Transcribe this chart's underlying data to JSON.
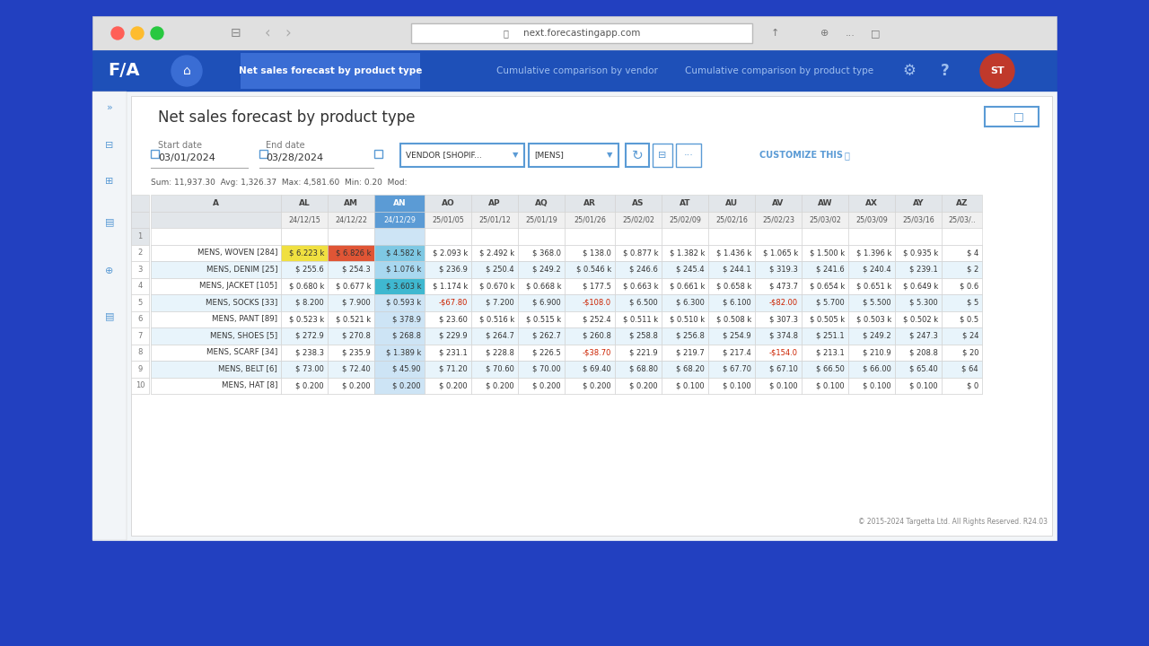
{
  "title": "Net sales forecast by product type",
  "start_date": "03/01/2024",
  "end_date": "03/28/2024",
  "vendor_filter": "VENDOR [SHOPIF...",
  "category_filter": "[MENS]",
  "sum_line": "Sum: 11,937.30  Avg: 1,326.37  Max: 4,581.60  Min: 0.20  Mod:",
  "bg_color": "#2240C0",
  "browser_chrome_bg": "#dedede",
  "content_bg": "#f2f5f8",
  "white_panel_bg": "#ffffff",
  "nav_bar_color": "#1e50b8",
  "nav_active_bg": "#3a6dd4",
  "header_row_bg": "#e2e6ea",
  "selected_col_bg": "#5b9bd5",
  "selected_col_light": "#cde4f5",
  "alt_row_bg": "#e8f4fb",
  "footer_text": "© 2015-2024 Targetta Ltd. All Rights Reserved. R24.03",
  "col_headers": [
    "A",
    "AL",
    "AM",
    "AN",
    "AO",
    "AP",
    "AQ",
    "AR",
    "AS",
    "AT",
    "AU",
    "AV",
    "AW",
    "AX",
    "AY",
    "AZ"
  ],
  "date_headers": [
    "",
    "24/12/15",
    "24/12/22",
    "24/12/29",
    "25/01/05",
    "25/01/12",
    "25/01/19",
    "25/01/26",
    "25/02/02",
    "25/02/09",
    "25/02/16",
    "25/02/23",
    "25/03/02",
    "25/03/09",
    "25/03/16",
    "25/03/.."
  ],
  "rows": [
    [
      "",
      "",
      "",
      "",
      "",
      "",
      "",
      "",
      "",
      "",
      "",
      "",
      "",
      "",
      "",
      ""
    ],
    [
      "MENS, WOVEN [284]",
      "$ 6.223 k",
      "$ 6.826 k",
      "$ 4.582 k",
      "$ 2.093 k",
      "$ 2.492 k",
      "$ 368.0",
      "$ 138.0",
      "$ 0.877 k",
      "$ 1.382 k",
      "$ 1.436 k",
      "$ 1.065 k",
      "$ 1.500 k",
      "$ 1.396 k",
      "$ 0.935 k",
      "$ 4"
    ],
    [
      "MENS, DENIM [25]",
      "$ 255.6",
      "$ 254.3",
      "$ 1.076 k",
      "$ 236.9",
      "$ 250.4",
      "$ 249.2",
      "$ 0.546 k",
      "$ 246.6",
      "$ 245.4",
      "$ 244.1",
      "$ 319.3",
      "$ 241.6",
      "$ 240.4",
      "$ 239.1",
      "$ 2"
    ],
    [
      "MENS, JACKET [105]",
      "$ 0.680 k",
      "$ 0.677 k",
      "$ 3.603 k",
      "$ 1.174 k",
      "$ 0.670 k",
      "$ 0.668 k",
      "$ 177.5",
      "$ 0.663 k",
      "$ 0.661 k",
      "$ 0.658 k",
      "$ 473.7",
      "$ 0.654 k",
      "$ 0.651 k",
      "$ 0.649 k",
      "$ 0.6"
    ],
    [
      "MENS, SOCKS [33]",
      "$ 8.200",
      "$ 7.900",
      "$ 0.593 k",
      "-$67.80",
      "$ 7.200",
      "$ 6.900",
      "-$108.0",
      "$ 6.500",
      "$ 6.300",
      "$ 6.100",
      "-$82.00",
      "$ 5.700",
      "$ 5.500",
      "$ 5.300",
      "$ 5"
    ],
    [
      "MENS, PANT [89]",
      "$ 0.523 k",
      "$ 0.521 k",
      "$ 378.9",
      "$ 23.60",
      "$ 0.516 k",
      "$ 0.515 k",
      "$ 252.4",
      "$ 0.511 k",
      "$ 0.510 k",
      "$ 0.508 k",
      "$ 307.3",
      "$ 0.505 k",
      "$ 0.503 k",
      "$ 0.502 k",
      "$ 0.5"
    ],
    [
      "MENS, SHOES [5]",
      "$ 272.9",
      "$ 270.8",
      "$ 268.8",
      "$ 229.9",
      "$ 264.7",
      "$ 262.7",
      "$ 260.8",
      "$ 258.8",
      "$ 256.8",
      "$ 254.9",
      "$ 374.8",
      "$ 251.1",
      "$ 249.2",
      "$ 247.3",
      "$ 24"
    ],
    [
      "MENS, SCARF [34]",
      "$ 238.3",
      "$ 235.9",
      "$ 1.389 k",
      "$ 231.1",
      "$ 228.8",
      "$ 226.5",
      "-$38.70",
      "$ 221.9",
      "$ 219.7",
      "$ 217.4",
      "-$154.0",
      "$ 213.1",
      "$ 210.9",
      "$ 208.8",
      "$ 20"
    ],
    [
      "MENS, BELT [6]",
      "$ 73.00",
      "$ 72.40",
      "$ 45.90",
      "$ 71.20",
      "$ 70.60",
      "$ 70.00",
      "$ 69.40",
      "$ 68.80",
      "$ 68.20",
      "$ 67.70",
      "$ 67.10",
      "$ 66.50",
      "$ 66.00",
      "$ 65.40",
      "$ 64"
    ],
    [
      "MENS, HAT [8]",
      "$ 0.200",
      "$ 0.200",
      "$ 0.200",
      "$ 0.200",
      "$ 0.200",
      "$ 0.200",
      "$ 0.200",
      "$ 0.200",
      "$ 0.100",
      "$ 0.100",
      "$ 0.100",
      "$ 0.100",
      "$ 0.100",
      "$ 0.100",
      "$ 0"
    ]
  ],
  "special_cells": {
    "1_1": "#f0e040",
    "1_2": "#e05535",
    "1_3": "#7ec8e3",
    "2_3": "#a8d8f0",
    "3_3": "#3fb8d0"
  },
  "nav_items": [
    "Net sales forecast by product type",
    "Cumulative comparison by vendor",
    "Cumulative comparison by product type"
  ],
  "logo_text": "F/A",
  "address": "next.forecastingapp.com"
}
